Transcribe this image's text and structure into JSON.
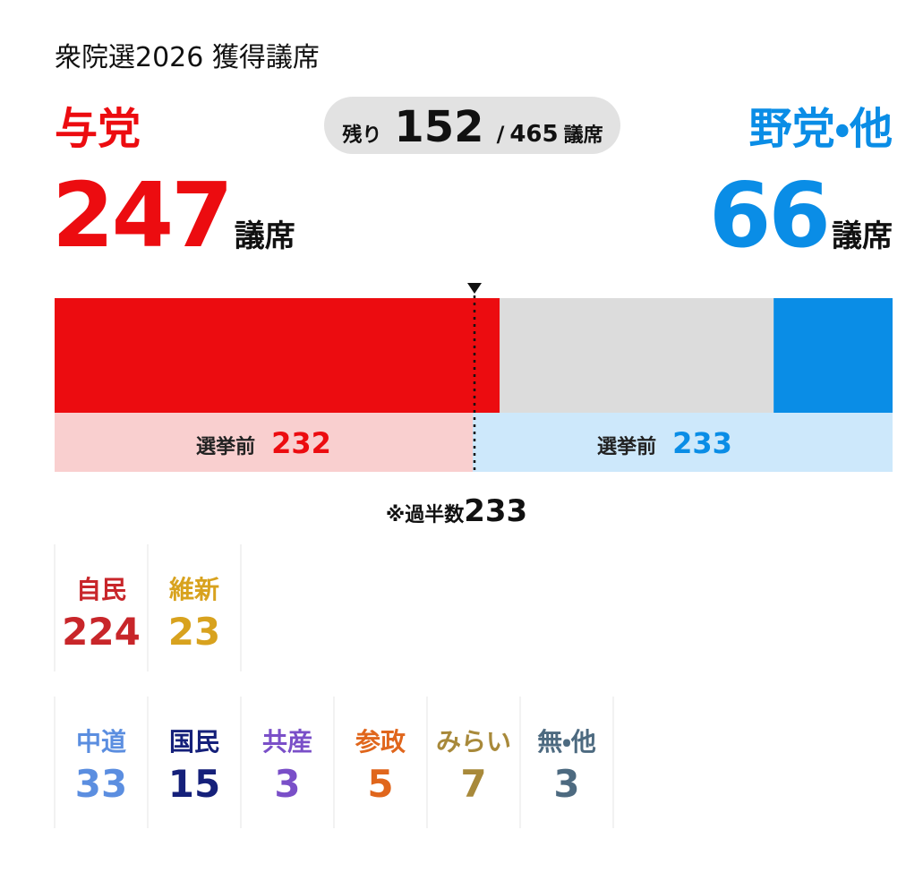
{
  "title": "衆院選2026 獲得議席",
  "ruling": {
    "label": "与党",
    "seats": 247,
    "unit": "議席",
    "before_label": "選挙前",
    "before": 232,
    "color": "#ec0c10",
    "before_bg": "#f9cfcf"
  },
  "opposition": {
    "label": "野党・他",
    "seats": 66,
    "unit": "議席",
    "before_label": "選挙前",
    "before": 233,
    "color": "#0a8de6",
    "before_bg": "#cde8fb"
  },
  "remaining": {
    "label": "残り",
    "seats": 152,
    "separator": "/",
    "total": 465,
    "unit": "議席",
    "color": "#dcdcdc"
  },
  "majority": {
    "label": "※過半数",
    "seats": 233
  },
  "parties_ruling": [
    {
      "name": "自民",
      "seats": 224,
      "color": "#c8262a"
    },
    {
      "name": "維新",
      "seats": 23,
      "color": "#d8a21e"
    }
  ],
  "parties_opposition": [
    {
      "name": "中道",
      "seats": 33,
      "color": "#5b8ee0"
    },
    {
      "name": "国民",
      "seats": 15,
      "color": "#15207a"
    },
    {
      "name": "共産",
      "seats": 3,
      "color": "#7a4fc8"
    },
    {
      "name": "参政",
      "seats": 5,
      "color": "#e0661c"
    },
    {
      "name": "みらい",
      "seats": 7,
      "color": "#a8893a"
    },
    {
      "name": "無・他",
      "seats": 3,
      "color": "#4d6a80"
    }
  ]
}
